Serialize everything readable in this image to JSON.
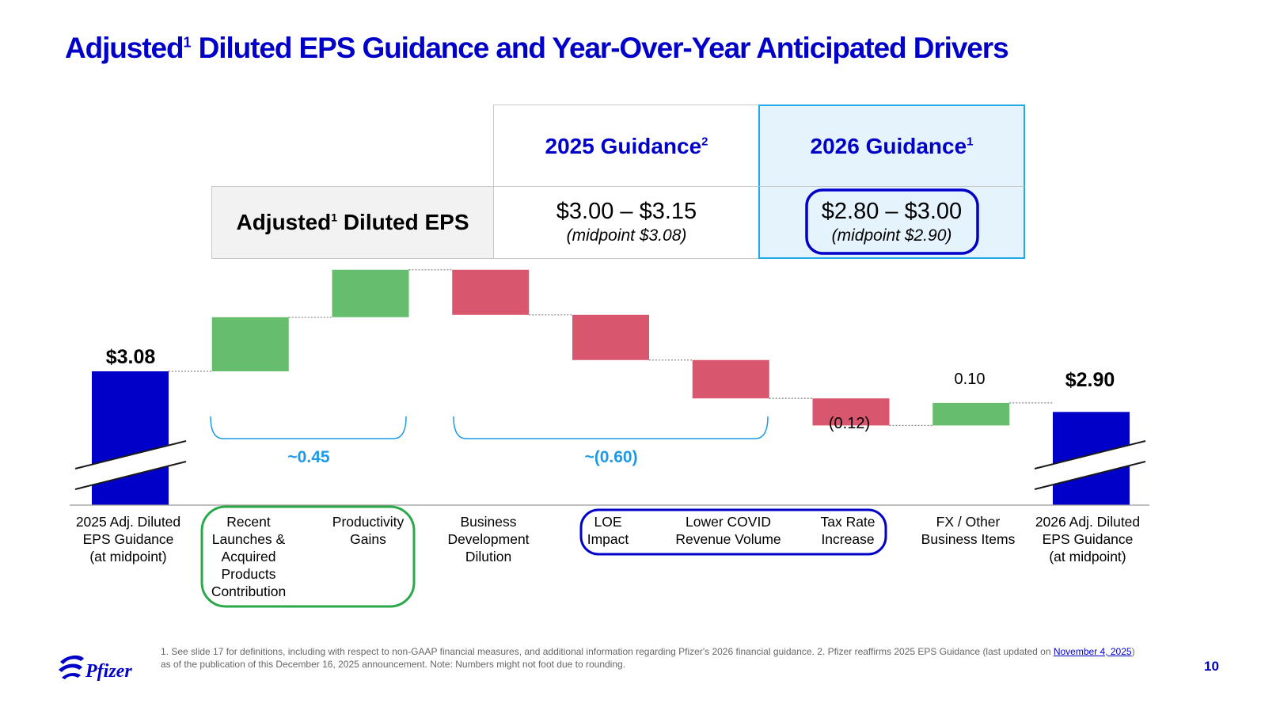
{
  "title": {
    "prefix": "Adjusted",
    "prefix_sup": "1",
    "rest": " Diluted EPS Guidance and Year-Over-Year Anticipated Drivers"
  },
  "guidance_table": {
    "col_2025": {
      "label": "2025 Guidance",
      "sup": "2"
    },
    "col_2026": {
      "label": "2026 Guidance",
      "sup": "1"
    },
    "row_label": {
      "text": "Adjusted",
      "sup": "1",
      "rest": " Diluted EPS"
    },
    "val_2025": {
      "range": "$3.00 – $3.15",
      "midpoint": "(midpoint $3.08)"
    },
    "val_2026": {
      "range": "$2.80 – $3.00",
      "midpoint": "(midpoint $2.90)"
    }
  },
  "chart_data": {
    "type": "waterfall",
    "start_label": "$3.08",
    "end_label": "$2.90",
    "steps": [
      {
        "category": "2025 Adj. Diluted EPS Guidance (at midpoint)",
        "kind": "total",
        "value": 3.08
      },
      {
        "category": "Recent Launches & Acquired Products Contribution",
        "kind": "increase",
        "value": 0.24
      },
      {
        "category": "Productivity Gains",
        "kind": "increase",
        "value": 0.21
      },
      {
        "category": "Business Development Dilution",
        "kind": "decrease",
        "value": -0.2
      },
      {
        "category": "LOE Impact",
        "kind": "decrease",
        "value": -0.2
      },
      {
        "category": "Lower COVID Revenue Volume",
        "kind": "decrease",
        "value": -0.17
      },
      {
        "category": "Tax Rate Increase",
        "kind": "decrease",
        "value": -0.12
      },
      {
        "category": "FX / Other Business Items",
        "kind": "increase",
        "value": 0.1
      },
      {
        "category": "2026 Adj. Diluted EPS Guidance (at midpoint)",
        "kind": "total",
        "value": 2.9
      }
    ],
    "data_labels": {
      "tax": "(0.12)",
      "fx": "0.10"
    },
    "group_brackets": [
      {
        "label": "~0.45"
      },
      {
        "label": "~(0.60)"
      }
    ],
    "axis_break": true
  },
  "categories": {
    "c0": [
      "2025 Adj. Diluted",
      "EPS Guidance",
      "(at midpoint)"
    ],
    "c1": [
      "Recent",
      "Launches &",
      "Acquired",
      "Products",
      "Contribution"
    ],
    "c2": [
      "Productivity",
      "Gains"
    ],
    "c3": [
      "Business",
      "Development",
      "Dilution"
    ],
    "c4": [
      "LOE",
      "Impact"
    ],
    "c5": [
      "Lower COVID",
      "Revenue Volume"
    ],
    "c6": [
      "Tax Rate",
      "Increase"
    ],
    "c7": [
      "FX / Other",
      "Business Items"
    ],
    "c8": [
      "2026 Adj. Diluted",
      "EPS Guidance",
      "(at midpoint)"
    ]
  },
  "footnote": {
    "part1": "1. See slide 17 for definitions, including with respect to non-GAAP financial measures, and additional information regarding Pfizer's 2026 financial guidance. 2. Pfizer reaffirms 2025 EPS Guidance (last updated on ",
    "link": "November 4, 2025",
    "part2": ") as of the publication of this December 16, 2025 announcement. Note: Numbers might not foot due to rounding."
  },
  "logo_text": "Pfizer",
  "page_number": "10",
  "colors": {
    "brand_blue": "#0000c9",
    "increase": "#66bd6e",
    "decrease": "#d9566f",
    "highlight_fill": "#e5f3fc",
    "highlight_border": "#22a9e6",
    "bracket": "#1d9ae6",
    "green_box": "#2aa84a"
  }
}
